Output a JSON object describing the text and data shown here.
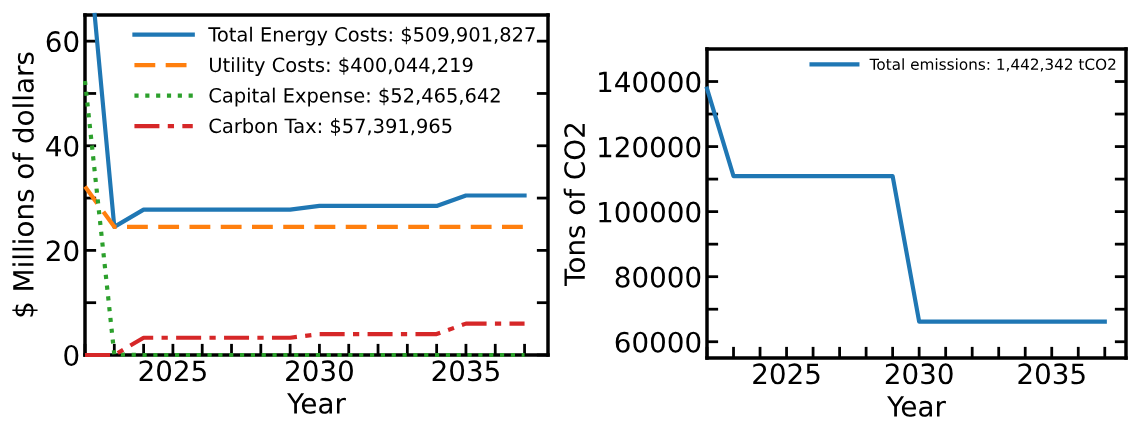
{
  "chart_data": [
    {
      "type": "line",
      "xlabel": "Year",
      "ylabel": "$ Millions of dollars",
      "x": [
        2022,
        2023,
        2024,
        2025,
        2026,
        2027,
        2028,
        2029,
        2030,
        2031,
        2032,
        2033,
        2034,
        2035,
        2036,
        2037
      ],
      "xlim": [
        2022,
        2037.8
      ],
      "xticks": [
        {
          "value": 2022,
          "label": null
        },
        {
          "value": 2023,
          "label": null
        },
        {
          "value": 2024,
          "label": null
        },
        2025,
        {
          "value": 2026,
          "label": null
        },
        {
          "value": 2027,
          "label": null
        },
        {
          "value": 2028,
          "label": null
        },
        {
          "value": 2029,
          "label": null
        },
        2030,
        {
          "value": 2031,
          "label": null
        },
        {
          "value": 2032,
          "label": null
        },
        {
          "value": 2033,
          "label": null
        },
        {
          "value": 2034,
          "label": null
        },
        2035,
        {
          "value": 2036,
          "label": null
        },
        {
          "value": 2037,
          "label": null
        }
      ],
      "ylim": [
        0,
        65
      ],
      "yticks": [
        0,
        {
          "value": 10,
          "label": null
        },
        20,
        {
          "value": 30,
          "label": null
        },
        40,
        {
          "value": 50,
          "label": null
        },
        60
      ],
      "grid": false,
      "legend": "top right",
      "marker": "none",
      "series": [
        {
          "name": "Total Energy Costs: $509,901,827",
          "color": "#1f77b4",
          "line_style": "solid",
          "x": [
            2022.33,
            2023,
            2024,
            2025,
            2026,
            2027,
            2028,
            2029,
            2030,
            2031,
            2032,
            2033,
            2034,
            2035,
            2036,
            2037
          ],
          "values": [
            65,
            24.5,
            27.8,
            27.8,
            27.8,
            27.8,
            27.8,
            27.8,
            28.5,
            28.5,
            28.5,
            28.5,
            28.5,
            30.5,
            30.5,
            30.5
          ]
        },
        {
          "name": "Utility Costs: $400,044,219",
          "color": "#ff7f0e",
          "line_style": "dashed",
          "values": [
            32.2,
            24.5,
            24.5,
            24.5,
            24.5,
            24.5,
            24.5,
            24.5,
            24.5,
            24.5,
            24.5,
            24.5,
            24.5,
            24.5,
            24.5,
            24.5
          ]
        },
        {
          "name": "Capital Expense: $52,465,642",
          "color": "#2ca02c",
          "line_style": "dotted",
          "values": [
            52.4,
            0.1,
            0,
            0,
            0,
            0,
            0,
            0,
            0,
            0,
            0,
            0,
            0,
            0,
            0,
            0
          ]
        },
        {
          "name": "Carbon Tax: $57,391,965",
          "color": "#d62728",
          "line_style": "dashdot",
          "values": [
            0,
            0,
            3.3,
            3.3,
            3.3,
            3.3,
            3.3,
            3.3,
            4.0,
            4.0,
            4.0,
            4.0,
            4.0,
            6.0,
            6.0,
            6.0
          ]
        }
      ]
    },
    {
      "type": "line",
      "xlabel": "Year",
      "ylabel": "Tons of CO2",
      "x": [
        2022,
        2023,
        2024,
        2025,
        2026,
        2027,
        2028,
        2029,
        2030,
        2031,
        2032,
        2033,
        2034,
        2035,
        2036,
        2037
      ],
      "xlim": [
        2022,
        2037.8
      ],
      "xticks": [
        {
          "value": 2022,
          "label": null
        },
        {
          "value": 2023,
          "label": null
        },
        {
          "value": 2024,
          "label": null
        },
        2025,
        {
          "value": 2026,
          "label": null
        },
        {
          "value": 2027,
          "label": null
        },
        {
          "value": 2028,
          "label": null
        },
        {
          "value": 2029,
          "label": null
        },
        2030,
        {
          "value": 2031,
          "label": null
        },
        {
          "value": 2032,
          "label": null
        },
        {
          "value": 2033,
          "label": null
        },
        {
          "value": 2034,
          "label": null
        },
        2035,
        {
          "value": 2036,
          "label": null
        },
        {
          "value": 2037,
          "label": null
        }
      ],
      "ylim": [
        55000,
        150000
      ],
      "yticks": [
        60000,
        {
          "value": 70000,
          "label": null
        },
        80000,
        {
          "value": 90000,
          "label": null
        },
        100000,
        {
          "value": 110000,
          "label": null
        },
        120000,
        {
          "value": 130000,
          "label": null
        },
        140000
      ],
      "grid": false,
      "legend": "top right",
      "marker": "none",
      "series": [
        {
          "name": "Total emissions: 1,442,342 tCO2",
          "color": "#1f77b4",
          "line_style": "solid",
          "values": [
            137800,
            110900,
            110900,
            110900,
            110900,
            110900,
            110900,
            110900,
            66200,
            66200,
            66200,
            66200,
            66200,
            66200,
            66200,
            66200
          ]
        }
      ]
    }
  ]
}
